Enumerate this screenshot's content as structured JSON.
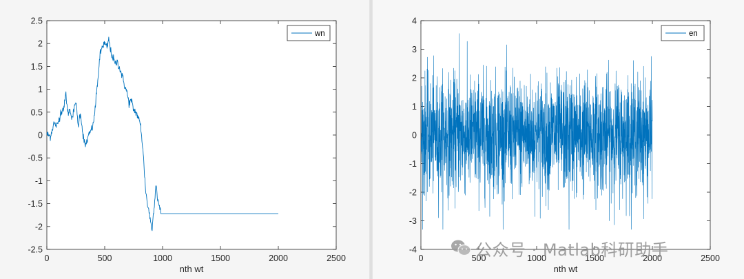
{
  "chart_data": [
    {
      "type": "line",
      "xlabel": "nth wt",
      "xlim": [
        0,
        2500
      ],
      "ylim": [
        -2.5,
        2.5
      ],
      "xticks": [
        "0",
        "500",
        "1000",
        "1500",
        "2000",
        "2500"
      ],
      "yticks": [
        "2.5",
        "2",
        "1.5",
        "1",
        "0.5",
        "0",
        "-0.5",
        "-1",
        "-1.5",
        "-2",
        "-2.5"
      ],
      "grid": false,
      "legend": "top-right",
      "color": "#0072BD",
      "series": [
        {
          "name": "wn",
          "points": [
            [
              0,
              0.02
            ],
            [
              30,
              -0.03
            ],
            [
              60,
              0.25
            ],
            [
              90,
              0.2
            ],
            [
              120,
              0.5
            ],
            [
              150,
              0.62
            ],
            [
              165,
              0.92
            ],
            [
              180,
              0.48
            ],
            [
              200,
              0.55
            ],
            [
              220,
              0.38
            ],
            [
              240,
              0.6
            ],
            [
              250,
              0.78
            ],
            [
              270,
              0.2
            ],
            [
              290,
              0.5
            ],
            [
              310,
              0.05
            ],
            [
              330,
              -0.25
            ],
            [
              350,
              -0.1
            ],
            [
              380,
              0.1
            ],
            [
              400,
              0.2
            ],
            [
              420,
              0.65
            ],
            [
              440,
              1.2
            ],
            [
              460,
              1.75
            ],
            [
              480,
              1.95
            ],
            [
              500,
              2.0
            ],
            [
              520,
              1.9
            ],
            [
              535,
              2.1
            ],
            [
              550,
              1.85
            ],
            [
              570,
              1.7
            ],
            [
              590,
              1.55
            ],
            [
              610,
              1.6
            ],
            [
              630,
              1.45
            ],
            [
              650,
              1.3
            ],
            [
              670,
              1.1
            ],
            [
              690,
              0.95
            ],
            [
              710,
              0.7
            ],
            [
              730,
              0.75
            ],
            [
              750,
              0.55
            ],
            [
              770,
              0.5
            ],
            [
              790,
              0.38
            ],
            [
              810,
              0.2
            ],
            [
              830,
              -0.3
            ],
            [
              850,
              -1.1
            ],
            [
              870,
              -1.55
            ],
            [
              880,
              -1.6
            ],
            [
              890,
              -1.8
            ],
            [
              900,
              -1.95
            ],
            [
              910,
              -2.05
            ],
            [
              920,
              -1.75
            ],
            [
              935,
              -1.3
            ],
            [
              945,
              -1.05
            ],
            [
              955,
              -1.35
            ],
            [
              970,
              -1.55
            ],
            [
              985,
              -1.72
            ],
            [
              2000,
              -1.72
            ]
          ]
        }
      ]
    },
    {
      "type": "line",
      "xlabel": "nth wt",
      "xlim": [
        0,
        2500
      ],
      "ylim": [
        -4,
        4
      ],
      "xticks": [
        "0",
        "500",
        "1000",
        "1500",
        "2000",
        "2500"
      ],
      "yticks": [
        "4",
        "3",
        "2",
        "1",
        "0",
        "-1",
        "-2",
        "-3",
        "-4"
      ],
      "grid": false,
      "legend": "top-right",
      "color": "#0072BD",
      "series": [
        {
          "name": "en",
          "n": 2000,
          "distribution": "gaussian",
          "mean": 0,
          "std": 1,
          "max": 3.55,
          "min": -3.3,
          "max_at": 330,
          "min_at": 1280
        }
      ]
    }
  ],
  "watermark": {
    "text": "公众号 · Matlab科研助手",
    "icon": "wechat-icon"
  }
}
